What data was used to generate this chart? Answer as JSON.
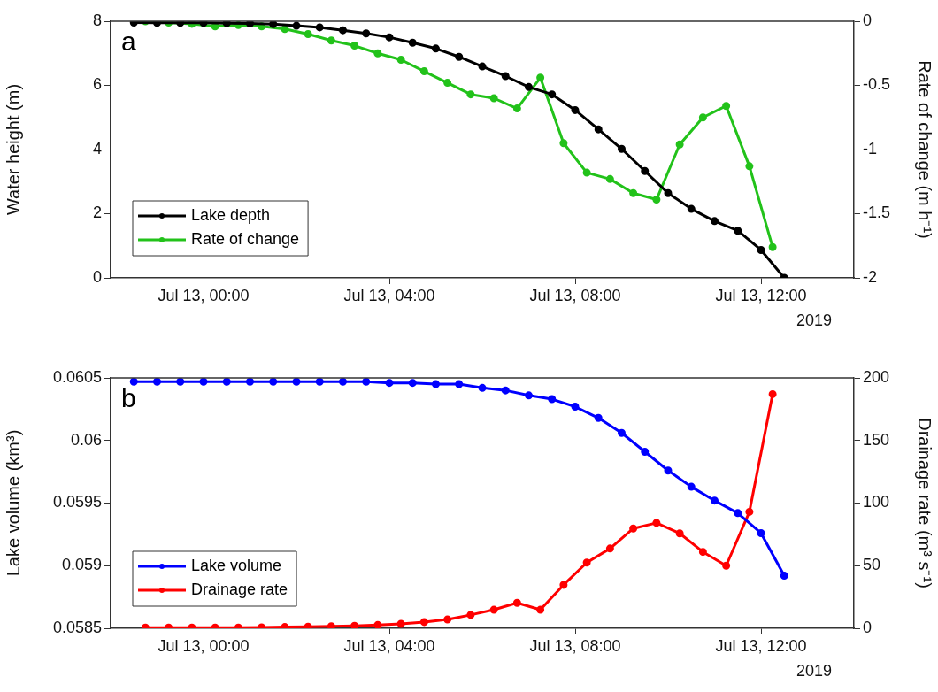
{
  "chart_data": [
    {
      "type": "line",
      "title": "a",
      "ylabel": "Water height (m)",
      "y2label": "Rate of change (m h⁻¹)",
      "annotations": [
        "2019"
      ],
      "legend": "bottom left",
      "marker": "circle",
      "grid": false,
      "xlim": [
        "2019-07-12T22:00",
        "2019-07-13T14:00"
      ],
      "xticks": [
        {
          "value": "2019-07-13T00:00",
          "label": "Jul 13, 00:00"
        },
        {
          "value": "2019-07-13T04:00",
          "label": "Jul 13, 04:00"
        },
        {
          "value": "2019-07-13T08:00",
          "label": "Jul 13, 08:00"
        },
        {
          "value": "2019-07-13T12:00",
          "label": "Jul 13, 12:00"
        }
      ],
      "ylim": [
        0,
        8
      ],
      "yticks": [
        0,
        2,
        4,
        6,
        8
      ],
      "y2lim": [
        -2,
        0
      ],
      "y2ticks": [
        -2,
        -1.5,
        -1,
        -0.5,
        0
      ],
      "series": [
        {
          "name": "Lake depth",
          "color": "#000000",
          "x": [
            "2019-07-12T22:30",
            "2019-07-12T23:00",
            "2019-07-12T23:30",
            "2019-07-13T00:00",
            "2019-07-13T00:30",
            "2019-07-13T01:00",
            "2019-07-13T01:30",
            "2019-07-13T02:00",
            "2019-07-13T02:30",
            "2019-07-13T03:00",
            "2019-07-13T03:30",
            "2019-07-13T04:00",
            "2019-07-13T04:30",
            "2019-07-13T05:00",
            "2019-07-13T05:30",
            "2019-07-13T06:00",
            "2019-07-13T06:30",
            "2019-07-13T07:00",
            "2019-07-13T07:30",
            "2019-07-13T08:00",
            "2019-07-13T08:30",
            "2019-07-13T09:00",
            "2019-07-13T09:30",
            "2019-07-13T10:00",
            "2019-07-13T10:30",
            "2019-07-13T11:00",
            "2019-07-13T11:30",
            "2019-07-13T12:00",
            "2019-07-13T12:30"
          ],
          "values": [
            7.96,
            7.95,
            7.95,
            7.95,
            7.94,
            7.93,
            7.91,
            7.86,
            7.81,
            7.72,
            7.62,
            7.5,
            7.33,
            7.15,
            6.89,
            6.59,
            6.29,
            5.95,
            5.72,
            5.23,
            4.63,
            4.02,
            3.33,
            2.64,
            2.15,
            1.77,
            1.47,
            0.87,
            0
          ]
        },
        {
          "name": "Rate of change",
          "color": "#22c21a",
          "axis": "y2",
          "x": [
            "2019-07-12T22:45",
            "2019-07-12T23:15",
            "2019-07-12T23:45",
            "2019-07-13T00:15",
            "2019-07-13T00:45",
            "2019-07-13T01:15",
            "2019-07-13T01:45",
            "2019-07-13T02:15",
            "2019-07-13T02:45",
            "2019-07-13T03:15",
            "2019-07-13T03:45",
            "2019-07-13T04:15",
            "2019-07-13T04:45",
            "2019-07-13T05:15",
            "2019-07-13T05:45",
            "2019-07-13T06:15",
            "2019-07-13T06:45",
            "2019-07-13T07:15",
            "2019-07-13T07:45",
            "2019-07-13T08:15",
            "2019-07-13T08:45",
            "2019-07-13T09:15",
            "2019-07-13T09:45",
            "2019-07-13T10:15",
            "2019-07-13T10:45",
            "2019-07-13T11:15",
            "2019-07-13T11:45",
            "2019-07-13T12:15"
          ],
          "values": [
            0,
            -0.01,
            -0.02,
            -0.04,
            -0.03,
            -0.04,
            -0.06,
            -0.1,
            -0.15,
            -0.19,
            -0.25,
            -0.3,
            -0.39,
            -0.48,
            -0.57,
            -0.6,
            -0.68,
            -0.44,
            -0.95,
            -1.18,
            -1.23,
            -1.34,
            -1.39,
            -0.96,
            -0.75,
            -0.66,
            -1.13,
            -1.76
          ]
        }
      ]
    },
    {
      "type": "line",
      "title": "b",
      "ylabel": "Lake volume (km³)",
      "y2label": "Drainage rate (m³ s⁻¹)",
      "annotations": [
        "2019"
      ],
      "legend": "bottom left",
      "marker": "circle",
      "grid": false,
      "xlim": [
        "2019-07-12T22:00",
        "2019-07-13T14:00"
      ],
      "xticks": [
        {
          "value": "2019-07-13T00:00",
          "label": "Jul 13, 00:00"
        },
        {
          "value": "2019-07-13T04:00",
          "label": "Jul 13, 04:00"
        },
        {
          "value": "2019-07-13T08:00",
          "label": "Jul 13, 08:00"
        },
        {
          "value": "2019-07-13T12:00",
          "label": "Jul 13, 12:00"
        }
      ],
      "ylim": [
        0.0585,
        0.0605
      ],
      "yticks": [
        0.0585,
        0.059,
        0.0595,
        0.06,
        0.0605
      ],
      "y2lim": [
        0,
        200
      ],
      "y2ticks": [
        0,
        50,
        100,
        150,
        200
      ],
      "series": [
        {
          "name": "Lake volume",
          "color": "#0000ff",
          "x": [
            "2019-07-12T22:30",
            "2019-07-12T23:00",
            "2019-07-12T23:30",
            "2019-07-13T00:00",
            "2019-07-13T00:30",
            "2019-07-13T01:00",
            "2019-07-13T01:30",
            "2019-07-13T02:00",
            "2019-07-13T02:30",
            "2019-07-13T03:00",
            "2019-07-13T03:30",
            "2019-07-13T04:00",
            "2019-07-13T04:30",
            "2019-07-13T05:00",
            "2019-07-13T05:30",
            "2019-07-13T06:00",
            "2019-07-13T06:30",
            "2019-07-13T07:00",
            "2019-07-13T07:30",
            "2019-07-13T08:00",
            "2019-07-13T08:30",
            "2019-07-13T09:00",
            "2019-07-13T09:30",
            "2019-07-13T10:00",
            "2019-07-13T10:30",
            "2019-07-13T11:00",
            "2019-07-13T11:30",
            "2019-07-13T12:00",
            "2019-07-13T12:30"
          ],
          "values": [
            0.06047,
            0.06047,
            0.06047,
            0.06047,
            0.06047,
            0.06047,
            0.06047,
            0.06047,
            0.06047,
            0.06047,
            0.06047,
            0.06046,
            0.06046,
            0.06045,
            0.06045,
            0.06042,
            0.0604,
            0.06036,
            0.06033,
            0.06027,
            0.06018,
            0.06006,
            0.05991,
            0.05976,
            0.05963,
            0.05952,
            0.05942,
            0.05926,
            0.05892
          ]
        },
        {
          "name": "Drainage rate",
          "color": "#ff0000",
          "axis": "y2",
          "x": [
            "2019-07-12T22:45",
            "2019-07-12T23:15",
            "2019-07-12T23:45",
            "2019-07-13T00:15",
            "2019-07-13T00:45",
            "2019-07-13T01:15",
            "2019-07-13T01:45",
            "2019-07-13T02:15",
            "2019-07-13T02:45",
            "2019-07-13T03:15",
            "2019-07-13T03:45",
            "2019-07-13T04:15",
            "2019-07-13T04:45",
            "2019-07-13T05:15",
            "2019-07-13T05:45",
            "2019-07-13T06:15",
            "2019-07-13T06:45",
            "2019-07-13T07:15",
            "2019-07-13T07:45",
            "2019-07-13T08:15",
            "2019-07-13T08:45",
            "2019-07-13T09:15",
            "2019-07-13T09:45",
            "2019-07-13T10:15",
            "2019-07-13T10:45",
            "2019-07-13T11:15",
            "2019-07-13T11:45",
            "2019-07-13T12:15"
          ],
          "values": [
            0.5,
            0.5,
            0.5,
            0.5,
            0.6,
            0.7,
            1,
            1.2,
            1.6,
            2,
            2.6,
            3.5,
            5,
            7,
            10.7,
            14.8,
            20.3,
            14.8,
            34.7,
            52.5,
            63.7,
            79.7,
            84.2,
            75.8,
            61,
            50,
            93,
            187
          ]
        }
      ]
    }
  ]
}
